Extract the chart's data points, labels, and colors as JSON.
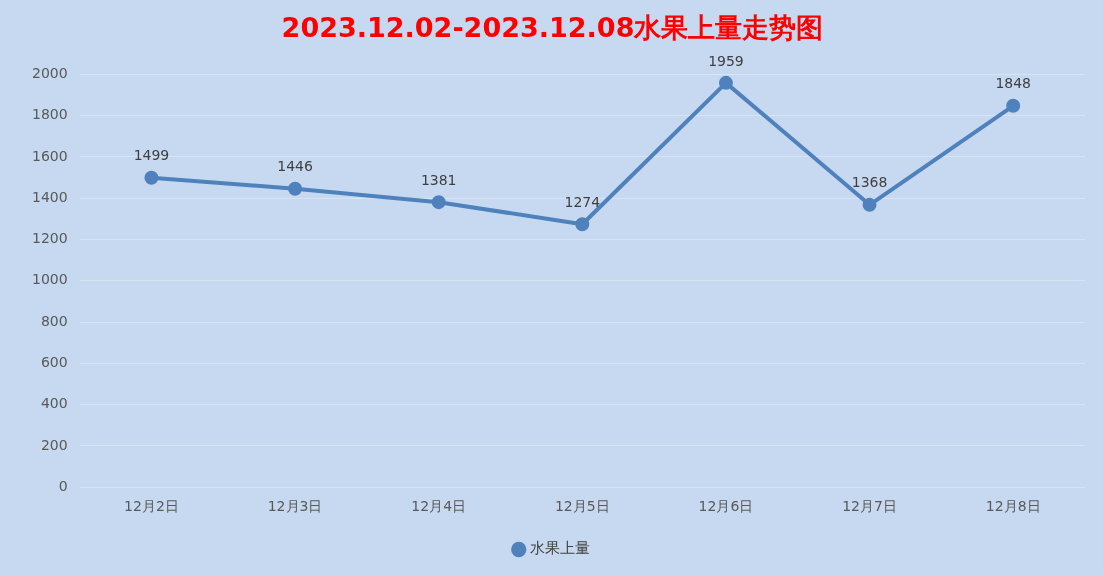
{
  "chart_data": {
    "type": "line",
    "title": "2023.12.02-2023.12.08水果上量走势图",
    "categories": [
      "12月2日",
      "12月3日",
      "12月4日",
      "12月5日",
      "12月6日",
      "12月7日",
      "12月8日"
    ],
    "series": [
      {
        "name": "水果上量",
        "color": "#4f81bd",
        "values": [
          1499,
          1446,
          1381,
          1274,
          1959,
          1368,
          1848
        ]
      }
    ],
    "ylim": [
      0,
      2000
    ],
    "yticks": [
      0,
      200,
      400,
      600,
      800,
      1000,
      1200,
      1400,
      1600,
      1800,
      2000
    ],
    "grid": "y",
    "legend": "bottom",
    "marker": "circle",
    "line_style": "solid",
    "data_labels": true
  }
}
